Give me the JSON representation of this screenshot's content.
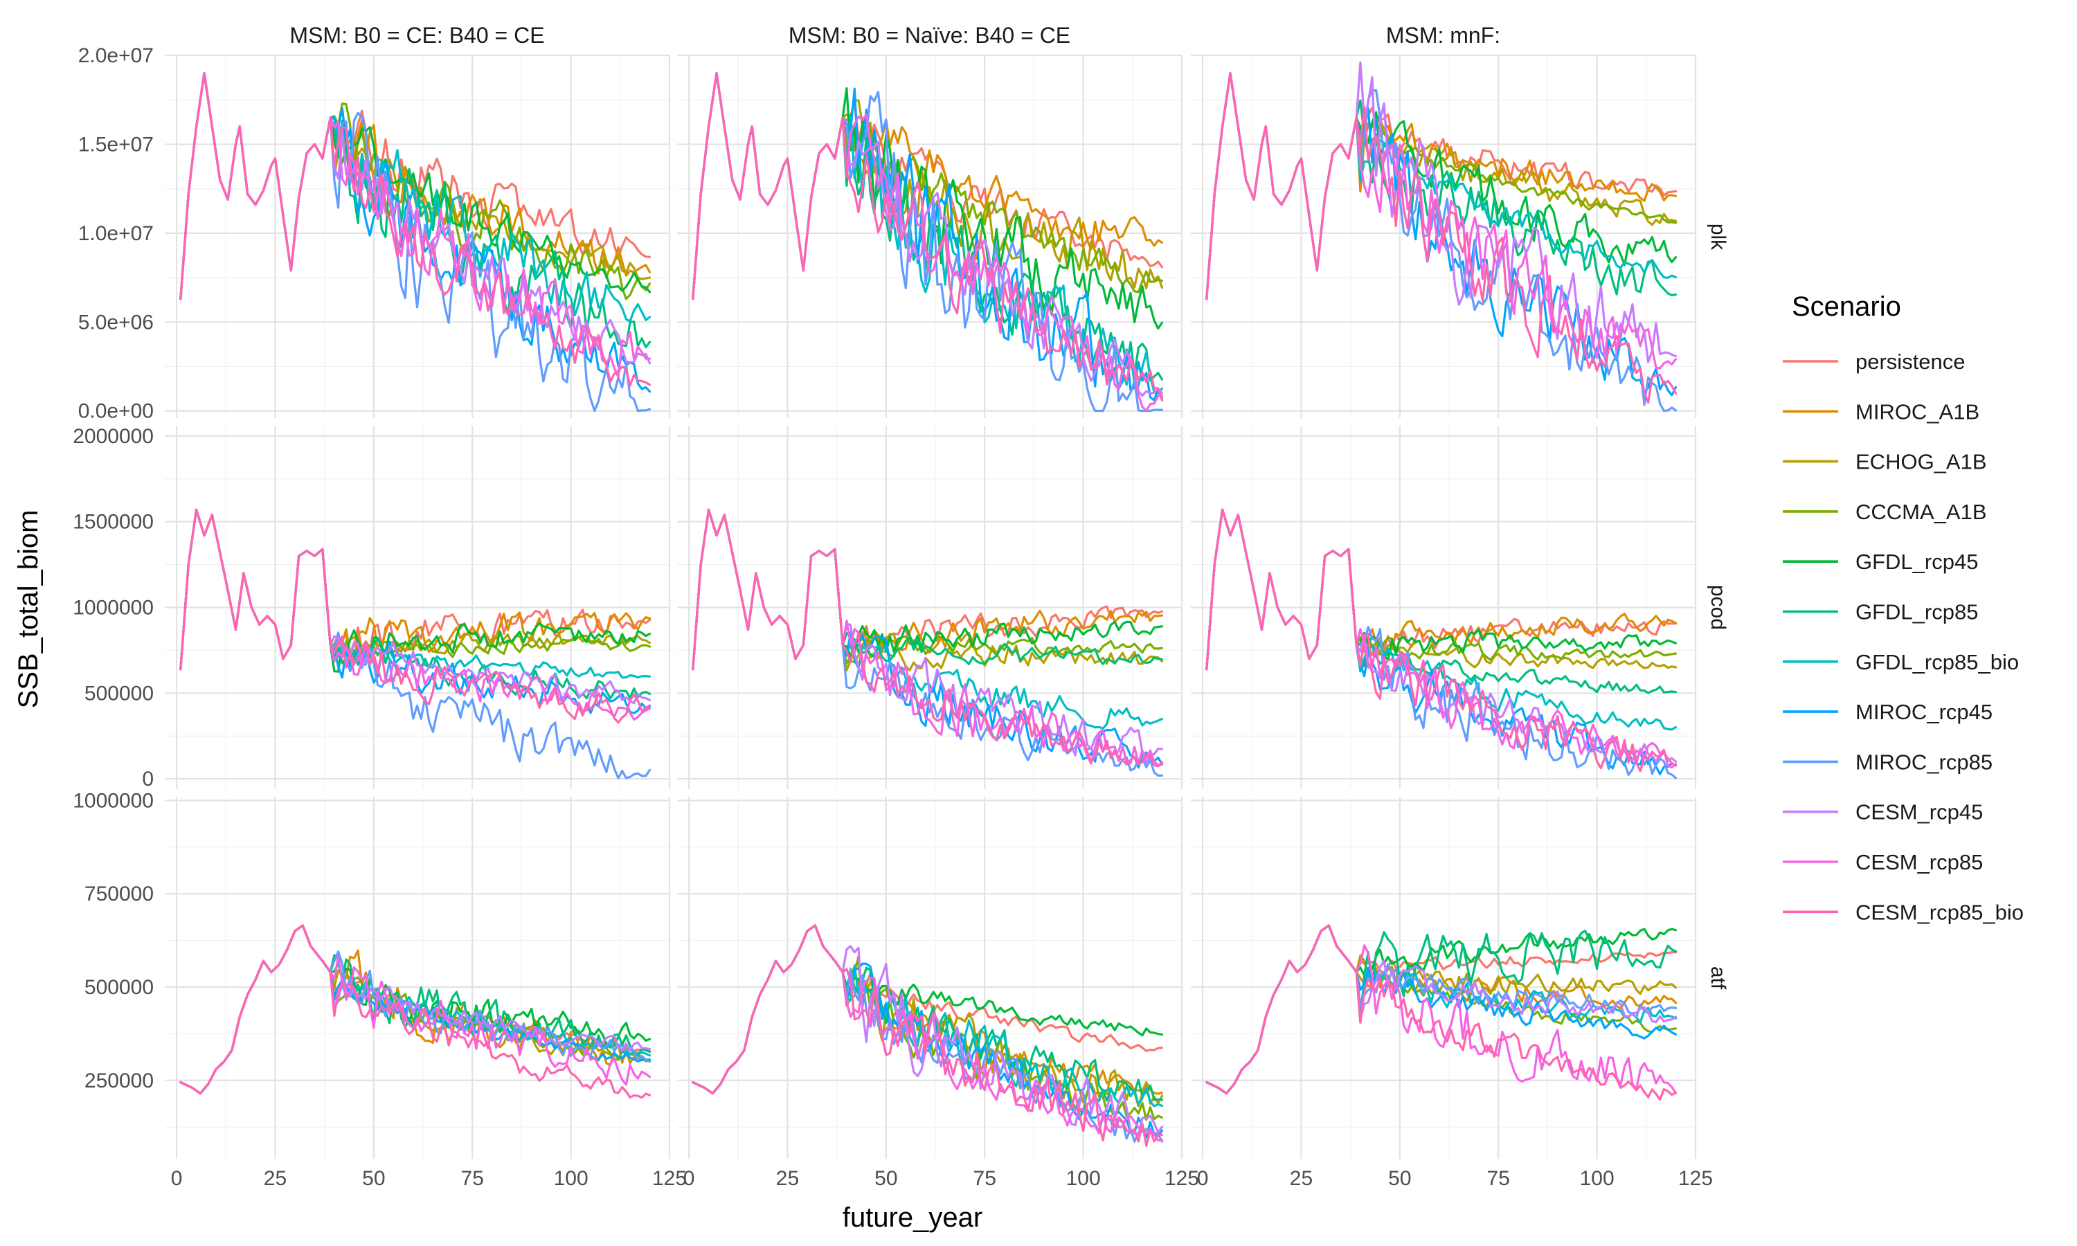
{
  "chart_data": {
    "type": "line",
    "xlabel": "future_year",
    "ylabel": "SSB_total_biom",
    "legend_title": "Scenario",
    "legend_position": "right",
    "grid": true,
    "facet_columns": [
      "MSM: B0 = CE: B40 = CE",
      "MSM: B0 = Naïve: B40 = CE",
      "MSM: mnF:"
    ],
    "facet_rows": [
      "plk",
      "pcod",
      "atf"
    ],
    "x_ticks": [
      0,
      25,
      50,
      75,
      100,
      125
    ],
    "xlim": [
      -3,
      125
    ],
    "rows": [
      {
        "name": "plk",
        "ylim": [
          -400000,
          20000000
        ],
        "ticks": [
          0,
          5000000,
          10000000,
          15000000,
          20000000
        ],
        "tick_labels": [
          "0.0e+00",
          "5.0e+06",
          "1.0e+07",
          "1.5e+07",
          "2.0e+07"
        ]
      },
      {
        "name": "pcod",
        "ylim": [
          -60000,
          2060000
        ],
        "ticks": [
          0,
          500000,
          1000000,
          1500000,
          2000000
        ],
        "tick_labels": [
          "0",
          "500000",
          "1000000",
          "1500000",
          "2000000"
        ]
      },
      {
        "name": "atf",
        "ylim": [
          40000,
          1010000
        ],
        "ticks": [
          250000,
          500000,
          750000,
          1000000
        ],
        "tick_labels": [
          "250000",
          "500000",
          "750000",
          "1000000"
        ]
      }
    ],
    "series": [
      {
        "name": "persistence",
        "color": "#F8766D"
      },
      {
        "name": "MIROC_A1B",
        "color": "#DE8C00"
      },
      {
        "name": "ECHOG_A1B",
        "color": "#B79F00"
      },
      {
        "name": "CCCMA_A1B",
        "color": "#7CAE00"
      },
      {
        "name": "GFDL_rcp45",
        "color": "#00BA38"
      },
      {
        "name": "GFDL_rcp85",
        "color": "#00BF7D"
      },
      {
        "name": "GFDL_rcp85_bio",
        "color": "#00BFC4"
      },
      {
        "name": "MIROC_rcp45",
        "color": "#00A5FF"
      },
      {
        "name": "MIROC_rcp85",
        "color": "#619CFF"
      },
      {
        "name": "CESM_rcp45",
        "color": "#C77CFF"
      },
      {
        "name": "CESM_rcp85",
        "color": "#F564E3"
      },
      {
        "name": "CESM_rcp85_bio",
        "color": "#FF64B0"
      }
    ],
    "history_end_year": 39,
    "history": {
      "plk": [
        [
          1,
          6300000
        ],
        [
          3,
          12200000
        ],
        [
          5,
          16000000
        ],
        [
          7,
          19000000
        ],
        [
          9,
          16000000
        ],
        [
          11,
          13000000
        ],
        [
          13,
          11900000
        ],
        [
          15,
          15000000
        ],
        [
          16,
          16000000
        ],
        [
          18,
          12200000
        ],
        [
          20,
          11600000
        ],
        [
          22,
          12400000
        ],
        [
          24,
          13800000
        ],
        [
          25,
          14200000
        ],
        [
          27,
          11000000
        ],
        [
          29,
          7900000
        ],
        [
          31,
          12000000
        ],
        [
          33,
          14500000
        ],
        [
          35,
          15000000
        ],
        [
          37,
          14200000
        ],
        [
          39,
          16500000
        ]
      ],
      "pcod": [
        [
          1,
          640000
        ],
        [
          3,
          1250000
        ],
        [
          5,
          1570000
        ],
        [
          7,
          1420000
        ],
        [
          9,
          1540000
        ],
        [
          11,
          1320000
        ],
        [
          13,
          1100000
        ],
        [
          15,
          870000
        ],
        [
          17,
          1200000
        ],
        [
          19,
          1000000
        ],
        [
          21,
          900000
        ],
        [
          23,
          950000
        ],
        [
          25,
          900000
        ],
        [
          27,
          700000
        ],
        [
          29,
          780000
        ],
        [
          31,
          1300000
        ],
        [
          33,
          1330000
        ],
        [
          35,
          1300000
        ],
        [
          37,
          1340000
        ],
        [
          39,
          780000
        ]
      ],
      "atf": [
        [
          1,
          245000
        ],
        [
          4,
          230000
        ],
        [
          6,
          215000
        ],
        [
          8,
          240000
        ],
        [
          10,
          280000
        ],
        [
          12,
          300000
        ],
        [
          14,
          330000
        ],
        [
          16,
          420000
        ],
        [
          18,
          480000
        ],
        [
          20,
          520000
        ],
        [
          22,
          570000
        ],
        [
          24,
          540000
        ],
        [
          26,
          560000
        ],
        [
          28,
          600000
        ],
        [
          30,
          650000
        ],
        [
          32,
          665000
        ],
        [
          34,
          610000
        ],
        [
          37,
          570000
        ],
        [
          39,
          540000
        ]
      ]
    },
    "projection": {
      "plk": {
        "MSM: B0 = CE: B40 = CE": {
          "persistence": 8800000,
          "MIROC_A1B": 7900000,
          "ECHOG_A1B": 7600000,
          "CCCMA_A1B": 6900000,
          "GFDL_rcp45": 6800000,
          "GFDL_rcp85": 4000000,
          "GFDL_rcp85_bio": 5000000,
          "MIROC_rcp45": 1500000,
          "MIROC_rcp85": 50000,
          "CESM_rcp45": 2800000,
          "CESM_rcp85": 2600000,
          "CESM_rcp85_bio": 1500000
        },
        "MSM: B0 = Naïve: B40 = CE": {
          "persistence": 8200000,
          "MIROC_A1B": 9300000,
          "ECHOG_A1B": 7200000,
          "CCCMA_A1B": 7100000,
          "GFDL_rcp45": 5000000,
          "GFDL_rcp85": 2000000,
          "GFDL_rcp85_bio": 1300000,
          "MIROC_rcp45": 800000,
          "MIROC_rcp85": 100000,
          "CESM_rcp45": 1200000,
          "CESM_rcp85": 700000,
          "CESM_rcp85_bio": 700000
        },
        "MSM: mnF:": {
          "persistence": 12100000,
          "MIROC_A1B": 12000000,
          "ECHOG_A1B": 10800000,
          "CCCMA_A1B": 10600000,
          "GFDL_rcp45": 8500000,
          "GFDL_rcp85": 6500000,
          "GFDL_rcp85_bio": 7500000,
          "MIROC_rcp45": 1300000,
          "MIROC_rcp85": 50000,
          "CESM_rcp45": 3000000,
          "CESM_rcp85": 2500000,
          "CESM_rcp85_bio": 1200000
        }
      },
      "pcod": {
        "MSM: B0 = CE: B40 = CE": {
          "persistence": 930000,
          "MIROC_A1B": 930000,
          "ECHOG_A1B": 800000,
          "CCCMA_A1B": 780000,
          "GFDL_rcp45": 850000,
          "GFDL_rcp85": 500000,
          "GFDL_rcp85_bio": 600000,
          "MIROC_rcp45": 420000,
          "MIROC_rcp85": 40000,
          "CESM_rcp45": 480000,
          "CESM_rcp85": 400000,
          "CESM_rcp85_bio": 400000
        },
        "MSM: B0 = Naïve: B40 = CE": {
          "persistence": 960000,
          "MIROC_A1B": 950000,
          "ECHOG_A1B": 690000,
          "CCCMA_A1B": 760000,
          "GFDL_rcp45": 880000,
          "GFDL_rcp85": 700000,
          "GFDL_rcp85_bio": 330000,
          "MIROC_rcp45": 100000,
          "MIROC_rcp85": 20000,
          "CESM_rcp45": 150000,
          "CESM_rcp85": 80000,
          "CESM_rcp85_bio": 80000
        },
        "MSM: mnF:": {
          "persistence": 900000,
          "MIROC_A1B": 920000,
          "ECHOG_A1B": 650000,
          "CCCMA_A1B": 720000,
          "GFDL_rcp45": 800000,
          "GFDL_rcp85": 500000,
          "GFDL_rcp85_bio": 300000,
          "MIROC_rcp45": 80000,
          "MIROC_rcp85": 20000,
          "CESM_rcp45": 120000,
          "CESM_rcp85": 80000,
          "CESM_rcp85_bio": 80000
        }
      },
      "atf": {
        "MSM: B0 = CE: B40 = CE": {
          "persistence": 330000,
          "MIROC_A1B": 310000,
          "ECHOG_A1B": 300000,
          "CCCMA_A1B": 305000,
          "GFDL_rcp45": 360000,
          "GFDL_rcp85": 330000,
          "GFDL_rcp85_bio": 320000,
          "MIROC_rcp45": 300000,
          "MIROC_rcp85": 310000,
          "CESM_rcp45": 330000,
          "CESM_rcp85": 270000,
          "CESM_rcp85_bio": 210000
        },
        "MSM: B0 = Naïve: B40 = CE": {
          "persistence": 335000,
          "MIROC_A1B": 220000,
          "ECHOG_A1B": 200000,
          "CCCMA_A1B": 150000,
          "GFDL_rcp45": 380000,
          "GFDL_rcp85": 200000,
          "GFDL_rcp85_bio": 180000,
          "MIROC_rcp45": 110000,
          "MIROC_rcp85": 90000,
          "CESM_rcp45": 120000,
          "CESM_rcp85": 95000,
          "CESM_rcp85_bio": 90000
        },
        "MSM: mnF:": {
          "persistence": 590000,
          "MIROC_A1B": 460000,
          "ECHOG_A1B": 500000,
          "CCCMA_A1B": 390000,
          "GFDL_rcp45": 650000,
          "GFDL_rcp85": 600000,
          "GFDL_rcp85_bio": 420000,
          "MIROC_rcp45": 380000,
          "MIROC_rcp85": 440000,
          "CESM_rcp45": 420000,
          "CESM_rcp85": 230000,
          "CESM_rcp85_bio": 210000
        }
      }
    }
  }
}
